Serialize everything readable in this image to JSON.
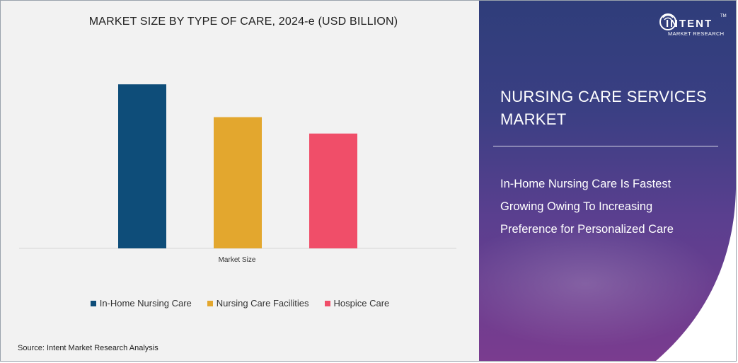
{
  "chart_data": {
    "type": "bar",
    "title": "MARKET SIZE BY TYPE OF CARE, 2024-e (USD BILLION)",
    "categories": [
      "Market Size"
    ],
    "series": [
      {
        "name": "In-Home Nursing Care",
        "values": [
          100
        ],
        "color": "#0e4d79"
      },
      {
        "name": "Nursing Care Facilities",
        "values": [
          80
        ],
        "color": "#e3a72e"
      },
      {
        "name": "Hospice Care",
        "values": [
          70
        ],
        "color": "#f04e69"
      }
    ],
    "ylim": [
      0,
      110
    ],
    "grid": false,
    "legend_position": "bottom"
  },
  "source": "Source: Intent Market Research Analysis",
  "brand": {
    "name": "INTENT",
    "sub": "MARKET RESEARCH",
    "tm": "TM"
  },
  "report": {
    "title": "NURSING CARE SERVICES MARKET",
    "highlight": "In-Home Nursing Care Is Fastest Growing Owing To Increasing Preference for Personalized Care"
  }
}
